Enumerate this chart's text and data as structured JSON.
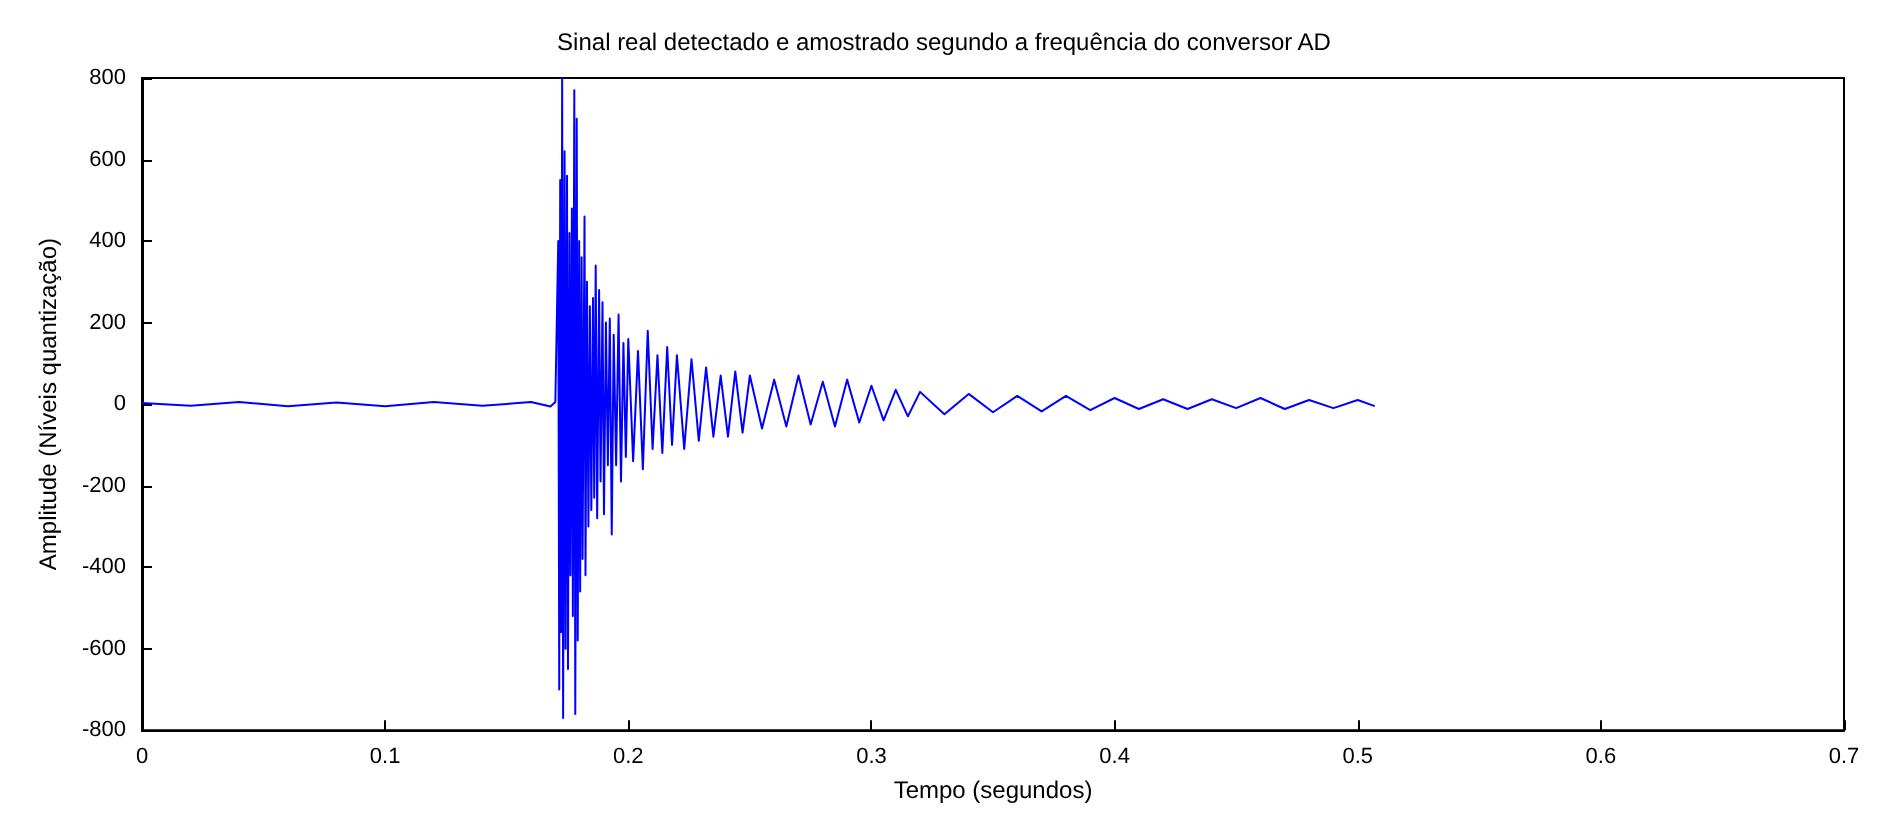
{
  "chart_data": {
    "type": "line",
    "title": "Sinal real detectado e amostrado segundo a frequência do conversor AD",
    "xlabel": "Tempo (segundos)",
    "ylabel": "Amplitude (Níveis quantização)",
    "xlim": [
      0,
      0.7
    ],
    "xticks": [
      0,
      0.1,
      0.2,
      0.3,
      0.4,
      0.5,
      0.6,
      0.7
    ],
    "ylim": [
      -800,
      800
    ],
    "yticks": [
      -800,
      -600,
      -400,
      -200,
      0,
      200,
      400,
      600,
      800
    ],
    "grid": false,
    "marker": "none",
    "line_style": "solid",
    "series": [
      {
        "color": "#0000ff",
        "x": [
          0,
          0.02,
          0.04,
          0.06,
          0.08,
          0.1,
          0.12,
          0.14,
          0.16,
          0.168,
          0.17,
          0.1712,
          0.1716,
          0.172,
          0.1724,
          0.1728,
          0.1732,
          0.1738,
          0.1742,
          0.1748,
          0.1752,
          0.1758,
          0.1762,
          0.1768,
          0.1772,
          0.1778,
          0.1782,
          0.1788,
          0.1792,
          0.1798,
          0.1802,
          0.1808,
          0.1812,
          0.182,
          0.1824,
          0.183,
          0.1836,
          0.1842,
          0.1848,
          0.1855,
          0.186,
          0.1866,
          0.1872,
          0.188,
          0.1886,
          0.1894,
          0.19,
          0.1908,
          0.1916,
          0.1924,
          0.1932,
          0.194,
          0.195,
          0.196,
          0.197,
          0.198,
          0.199,
          0.2,
          0.202,
          0.204,
          0.206,
          0.208,
          0.21,
          0.212,
          0.214,
          0.216,
          0.218,
          0.22,
          0.223,
          0.226,
          0.229,
          0.232,
          0.235,
          0.238,
          0.241,
          0.244,
          0.247,
          0.25,
          0.255,
          0.26,
          0.265,
          0.27,
          0.275,
          0.28,
          0.285,
          0.29,
          0.295,
          0.3,
          0.305,
          0.31,
          0.315,
          0.32,
          0.33,
          0.34,
          0.35,
          0.36,
          0.37,
          0.38,
          0.39,
          0.4,
          0.41,
          0.42,
          0.43,
          0.44,
          0.45,
          0.46,
          0.47,
          0.48,
          0.49,
          0.5,
          0.507
        ],
        "values": [
          3,
          -4,
          5,
          -5,
          4,
          -5,
          5,
          -4,
          5,
          -6,
          5,
          400,
          -700,
          550,
          -560,
          800,
          -770,
          620,
          -600,
          560,
          -650,
          420,
          -420,
          480,
          -520,
          770,
          -760,
          700,
          -580,
          400,
          -460,
          360,
          -380,
          460,
          -420,
          300,
          -300,
          240,
          -260,
          260,
          -230,
          340,
          -280,
          280,
          -190,
          250,
          -270,
          200,
          -150,
          210,
          -320,
          170,
          -150,
          220,
          -190,
          150,
          -130,
          160,
          -140,
          130,
          -160,
          180,
          -110,
          120,
          -120,
          140,
          -100,
          120,
          -110,
          110,
          -90,
          90,
          -80,
          70,
          -80,
          80,
          -70,
          70,
          -60,
          60,
          -55,
          70,
          -50,
          55,
          -55,
          60,
          -45,
          45,
          -40,
          35,
          -30,
          30,
          -25,
          25,
          -20,
          20,
          -18,
          20,
          -15,
          15,
          -12,
          12,
          -12,
          12,
          -10,
          15,
          -12,
          10,
          -10,
          10,
          -5
        ]
      }
    ]
  }
}
